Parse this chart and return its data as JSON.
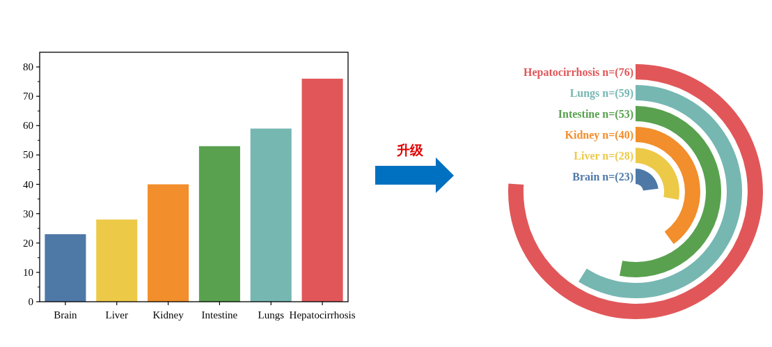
{
  "chart_data": [
    {
      "type": "bar",
      "categories": [
        "Brain",
        "Liver",
        "Kidney",
        "Intestine",
        "Lungs",
        "Hepatocirrhosis"
      ],
      "values": [
        23,
        28,
        40,
        53,
        59,
        76
      ],
      "colors": [
        "#4e79a7",
        "#edc948",
        "#f28e2b",
        "#59a14f",
        "#76b7b2",
        "#e15759"
      ],
      "ylim": [
        0,
        85
      ],
      "yticks": [
        0,
        10,
        20,
        30,
        40,
        50,
        60,
        70,
        80
      ]
    },
    {
      "type": "other",
      "categories": [
        "Brain",
        "Liver",
        "Kidney",
        "Intestine",
        "Lungs",
        "Hepatocirrhosis"
      ],
      "values": [
        23,
        28,
        40,
        53,
        59,
        76
      ],
      "value_labels": [
        "n=(23)",
        "n=(28)",
        "n=(40)",
        "n=(53)",
        "n=(59)",
        "n=(76)"
      ],
      "colors": [
        "#4e79a7",
        "#edc948",
        "#f28e2b",
        "#59a14f",
        "#76b7b2",
        "#e15759"
      ],
      "annotations": [
        "升级"
      ]
    }
  ]
}
